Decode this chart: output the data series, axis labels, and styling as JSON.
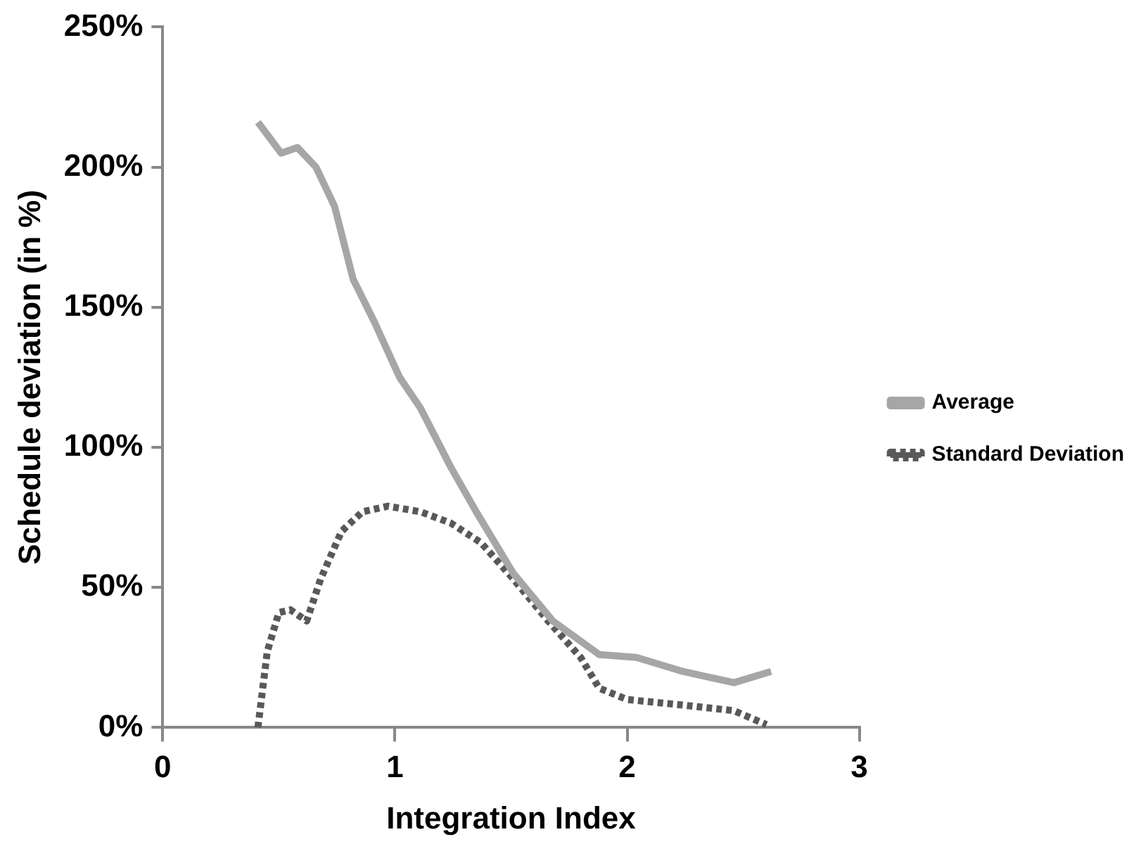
{
  "chart_data": {
    "type": "line",
    "xlabel": "Integration Index",
    "ylabel": "Schedule deviation (in %)",
    "xlim": [
      0,
      3
    ],
    "xticks": [
      0,
      1,
      2,
      3
    ],
    "ylim": [
      0,
      250
    ],
    "yticks": [
      {
        "value": 0,
        "label": "0%"
      },
      {
        "value": 50,
        "label": "50%"
      },
      {
        "value": 100,
        "label": "100%"
      },
      {
        "value": 150,
        "label": "150%"
      },
      {
        "value": 200,
        "label": "200%"
      },
      {
        "value": 250,
        "label": "250%"
      }
    ],
    "grid": false,
    "legend": "right",
    "marker": "none",
    "series": [
      {
        "name": "Average",
        "color": "#a6a6a6",
        "line_style": "solid",
        "x": [
          0.41,
          0.51,
          0.58,
          0.66,
          0.74,
          0.82,
          0.91,
          1.02,
          1.11,
          1.24,
          1.35,
          1.51,
          1.68,
          1.88,
          2.04,
          2.24,
          2.46,
          2.62
        ],
        "values": [
          216,
          205,
          207,
          200,
          186,
          160,
          145,
          125,
          114,
          93,
          77,
          55,
          38,
          26,
          25,
          20,
          16,
          20
        ]
      },
      {
        "name": "Standard Deviation",
        "color": "#595959",
        "line_style": "dotted",
        "x": [
          0.41,
          0.45,
          0.5,
          0.55,
          0.62,
          0.68,
          0.77,
          0.86,
          0.97,
          1.11,
          1.24,
          1.37,
          1.51,
          1.66,
          1.8,
          1.88,
          2.0,
          2.24,
          2.46,
          2.6
        ],
        "values": [
          0,
          27,
          41,
          42,
          38,
          53,
          70,
          77,
          79,
          77,
          73,
          66,
          53,
          38,
          25,
          14,
          10,
          8,
          6,
          1
        ]
      }
    ]
  }
}
